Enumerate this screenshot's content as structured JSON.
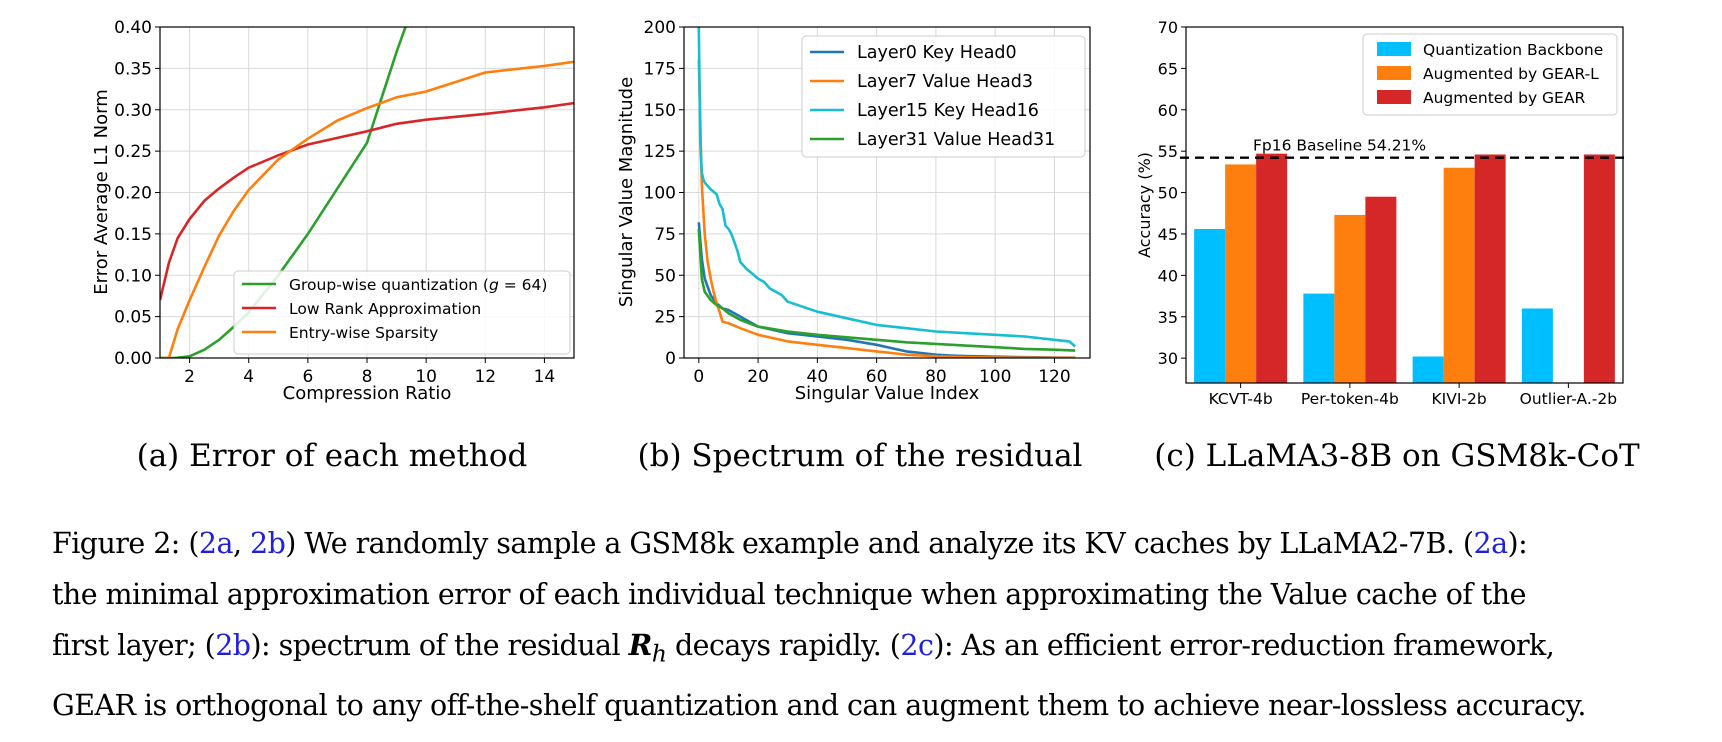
{
  "chart_data": [
    {
      "type": "line",
      "xlabel": "Compression Ratio",
      "ylabel": "Error Average L1 Norm",
      "xlim": [
        1,
        15
      ],
      "ylim": [
        0,
        0.4
      ],
      "xticks": [
        "2",
        "4",
        "6",
        "8",
        "10",
        "12",
        "14"
      ],
      "yticks": [
        "0.00",
        "0.05",
        "0.10",
        "0.15",
        "0.20",
        "0.25",
        "0.30",
        "0.35",
        "0.40"
      ],
      "grid": true,
      "legend_position": "lower-right",
      "series": [
        {
          "name": "Group-wise quantization (g = 64)",
          "legend_prefix": "Group-wise quantization (",
          "legend_var": "g",
          "legend_suffix": " = 64)",
          "color": "#2ca02c",
          "x": [
            1.0,
            1.5,
            2.0,
            2.5,
            3.0,
            3.5,
            4.0,
            5.0,
            6.0,
            7.0,
            8.0,
            8.5,
            9.0,
            9.5
          ],
          "y": [
            0.0,
            0.0,
            0.002,
            0.01,
            0.022,
            0.038,
            0.055,
            0.1,
            0.15,
            0.205,
            0.26,
            0.315,
            0.37,
            0.42
          ]
        },
        {
          "name": "Low Rank Approximation",
          "color": "#d62728",
          "x": [
            1.0,
            1.3,
            1.6,
            2.0,
            2.5,
            3.0,
            3.5,
            4.0,
            5.0,
            6.0,
            7.0,
            8.0,
            9.0,
            10.0,
            12.0,
            14.0,
            15.0
          ],
          "y": [
            0.07,
            0.115,
            0.145,
            0.168,
            0.19,
            0.205,
            0.218,
            0.23,
            0.245,
            0.258,
            0.266,
            0.274,
            0.283,
            0.288,
            0.295,
            0.303,
            0.308
          ]
        },
        {
          "name": "Entry-wise Sparsity",
          "color": "#ff7f0e",
          "x": [
            1.0,
            1.3,
            1.6,
            2.0,
            2.5,
            3.0,
            3.5,
            4.0,
            5.0,
            6.0,
            7.0,
            8.0,
            9.0,
            10.0,
            12.0,
            14.0,
            15.0
          ],
          "y": [
            0.0,
            0.0,
            0.035,
            0.07,
            0.11,
            0.148,
            0.178,
            0.203,
            0.24,
            0.265,
            0.287,
            0.302,
            0.315,
            0.322,
            0.345,
            0.353,
            0.358
          ]
        }
      ]
    },
    {
      "type": "line",
      "xlabel": "Singular Value Index",
      "ylabel": "Singular Value Magnitude",
      "xlim": [
        -5,
        132
      ],
      "ylim": [
        0,
        200
      ],
      "xticks": [
        "0",
        "20",
        "40",
        "60",
        "80",
        "100",
        "120"
      ],
      "yticks": [
        "0",
        "25",
        "50",
        "75",
        "100",
        "125",
        "150",
        "175",
        "200"
      ],
      "grid": true,
      "legend_position": "top-right",
      "series": [
        {
          "name": "Layer0 Key Head0",
          "color": "#1f77b4",
          "x": [
            0,
            1,
            2,
            4,
            6,
            8,
            10,
            14,
            20,
            30,
            40,
            50,
            60,
            65,
            70,
            75,
            80,
            85,
            90,
            95,
            100,
            110,
            120,
            127
          ],
          "y": [
            82,
            60,
            48,
            38,
            33,
            30,
            29,
            25,
            19,
            15,
            13,
            11,
            8,
            6,
            4,
            3,
            2,
            1.5,
            1.2,
            1,
            0.8,
            0.5,
            0.3,
            0.2
          ]
        },
        {
          "name": "Layer7 Value Head3",
          "color": "#ff7f0e",
          "x": [
            0,
            1,
            2,
            3,
            4,
            5,
            6,
            7,
            8,
            10,
            14,
            20,
            30,
            40,
            50,
            60,
            65,
            70,
            75,
            80,
            90,
            100,
            110,
            120,
            127
          ],
          "y": [
            180,
            105,
            75,
            58,
            48,
            40,
            33,
            28,
            22,
            21,
            18,
            14,
            10,
            8,
            6,
            4,
            3,
            2,
            1.5,
            1,
            0.5,
            0.3,
            0.2,
            0.1,
            0.1
          ]
        },
        {
          "name": "Layer15 Key Head16",
          "color": "#17becf",
          "x": [
            0,
            0.5,
            1,
            1.5,
            2,
            4,
            6,
            7,
            8,
            9,
            10,
            11,
            12,
            13,
            14,
            16,
            18,
            20,
            22,
            24,
            26,
            28,
            30,
            35,
            40,
            50,
            60,
            70,
            80,
            90,
            100,
            110,
            120,
            125,
            127
          ],
          "y": [
            200,
            130,
            112,
            108,
            106,
            102,
            99,
            93,
            90,
            80,
            78,
            75,
            70,
            65,
            58,
            54,
            51,
            48,
            46,
            42,
            40,
            38,
            34,
            31,
            28,
            24,
            20,
            18,
            16,
            15,
            14,
            13,
            11,
            10,
            7
          ]
        },
        {
          "name": "Layer31 Value Head31",
          "color": "#2ca02c",
          "x": [
            0,
            1,
            2,
            4,
            6,
            8,
            10,
            14,
            20,
            30,
            40,
            50,
            60,
            70,
            80,
            90,
            100,
            110,
            120,
            127
          ],
          "y": [
            78,
            48,
            40,
            35,
            32,
            30,
            27,
            23,
            19,
            16,
            14,
            12.5,
            11,
            9.5,
            8.5,
            7.5,
            6.5,
            5.5,
            5,
            4.5
          ]
        }
      ]
    },
    {
      "type": "bar",
      "ylabel": "Accuracy (%)",
      "ylim": [
        27,
        70
      ],
      "yticks": [
        "30",
        "35",
        "40",
        "45",
        "50",
        "55",
        "60",
        "65",
        "70"
      ],
      "categories": [
        "KCVT-4b",
        "Per-token-4b",
        "KIVI-2b",
        "Outlier-A.-2b"
      ],
      "legend_position": "top-right",
      "baseline": {
        "value": 54.21,
        "label": "Fp16 Baseline 54.21%"
      },
      "series": [
        {
          "name": "Quantization Backbone",
          "color": "#00bfff",
          "values": [
            45.6,
            37.8,
            30.2,
            36.0
          ]
        },
        {
          "name": "Augmented by GEAR-L",
          "color": "#ff7f0e",
          "values": [
            53.4,
            47.3,
            53.0,
            null
          ]
        },
        {
          "name": "Augmented by GEAR",
          "color": "#d62728",
          "values": [
            54.7,
            49.5,
            54.6,
            54.6
          ]
        }
      ]
    }
  ],
  "subcaptions": [
    "(a) Error of each method",
    "(b) Spectrum of the residual",
    "(c) LLaMA3-8B on GSM8k-CoT"
  ],
  "caption": {
    "figure_label": "Figure 2:",
    "refs": {
      "fig2a": "2a",
      "fig2b": "2b",
      "fig2c": "2c"
    },
    "t1": "(",
    "t2": ", ",
    "t3": ") We randomly sample a GSM8k example and analyze its KV caches by LLaMA2-7B. (",
    "t4": "):",
    "line2": "the minimal approximation error of each individual technique when approximating the Value cache of the",
    "t5": "first layer; (",
    "t6": "): spectrum of the residual ",
    "math_main": "R",
    "math_sub": "h",
    "t7": " decays rapidly. (",
    "t8": "): As an efficient error-reduction framework,",
    "line4": "GEAR is orthogonal to any off-the-shelf quantization and can augment them to achieve near-lossless accuracy."
  }
}
